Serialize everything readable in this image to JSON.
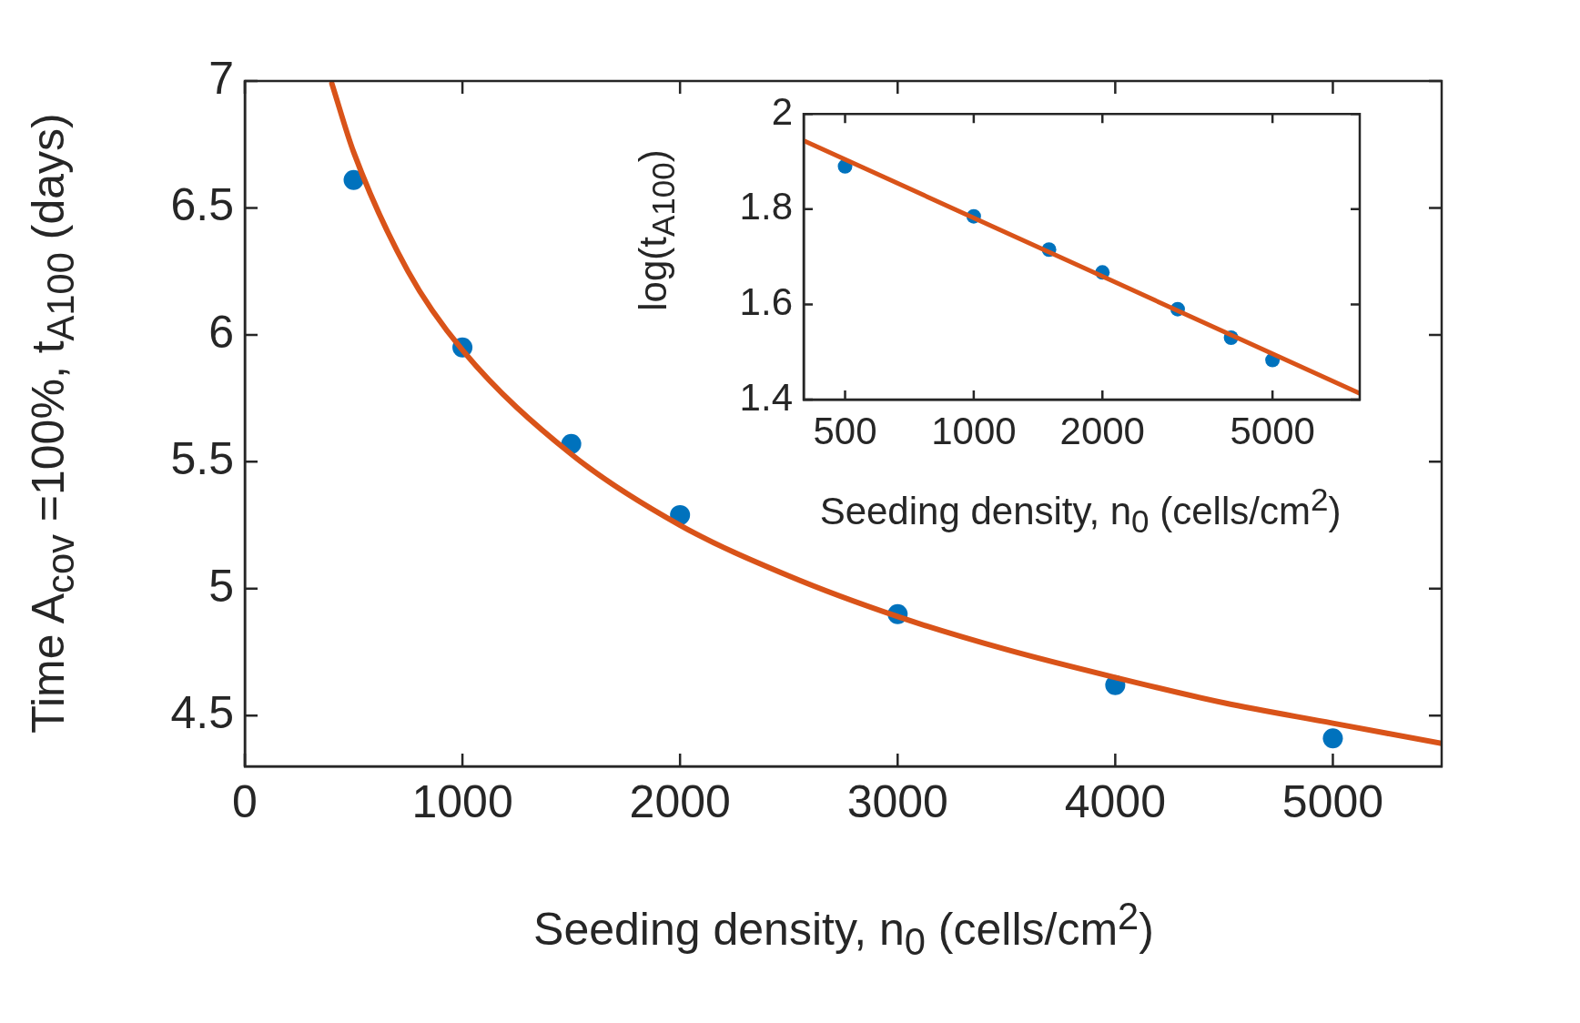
{
  "chart_data": [
    {
      "type": "scatter",
      "xlabel": "Seeding density, n$_{0}$ (cells/cm$^{2}$)",
      "ylabel": "Time A$_{cov}$ =100%, t$_{A100}$ (days)",
      "xlim": [
        0,
        5500
      ],
      "ylim": [
        4.3,
        7
      ],
      "xticks": [
        0,
        1000,
        2000,
        3000,
        4000,
        5000
      ],
      "yticks": [
        4.5,
        5,
        5.5,
        6,
        6.5,
        7
      ],
      "grid": false,
      "legend": false,
      "series": [
        {
          "color": "#0072bd",
          "marker": "circle",
          "x": [
            500,
            1000,
            1500,
            2000,
            3000,
            4000,
            5000
          ],
          "values": [
            6.61,
            5.95,
            5.57,
            5.29,
            4.9,
            4.62,
            4.41
          ]
        },
        {
          "type": "line",
          "color": "#d95319",
          "marker": "none",
          "line_style": "solid",
          "x": [
            400,
            500,
            750,
            1000,
            1500,
            2000,
            2500,
            3000,
            3500,
            4000,
            4500,
            5000,
            5500
          ],
          "values": [
            6.99,
            6.72,
            6.25,
            5.94,
            5.53,
            5.25,
            5.05,
            4.89,
            4.76,
            4.65,
            4.55,
            4.47,
            4.39
          ]
        }
      ]
    },
    {
      "type": "scatter",
      "xlabel": "Seeding density, n$_{0}$ (cells/cm$^{2}$)",
      "ylabel": "log(t$_{A100}$)",
      "log": "x",
      "xlim": [
        400,
        8000
      ],
      "ylim": [
        1.4,
        2
      ],
      "xticks": [
        500,
        1000,
        2000,
        5000
      ],
      "yticks": [
        1.4,
        1.6,
        1.8,
        2
      ],
      "grid": false,
      "legend": false,
      "series": [
        {
          "color": "#0072bd",
          "marker": "circle",
          "x": [
            500,
            1000,
            1500,
            2000,
            3000,
            4000,
            5000
          ],
          "values": [
            1.89,
            1.785,
            1.715,
            1.667,
            1.59,
            1.53,
            1.483
          ]
        },
        {
          "type": "line",
          "color": "#d95319",
          "marker": "none",
          "line_style": "solid",
          "x": [
            400,
            8000
          ],
          "values": [
            1.944,
            1.413
          ]
        }
      ]
    }
  ]
}
